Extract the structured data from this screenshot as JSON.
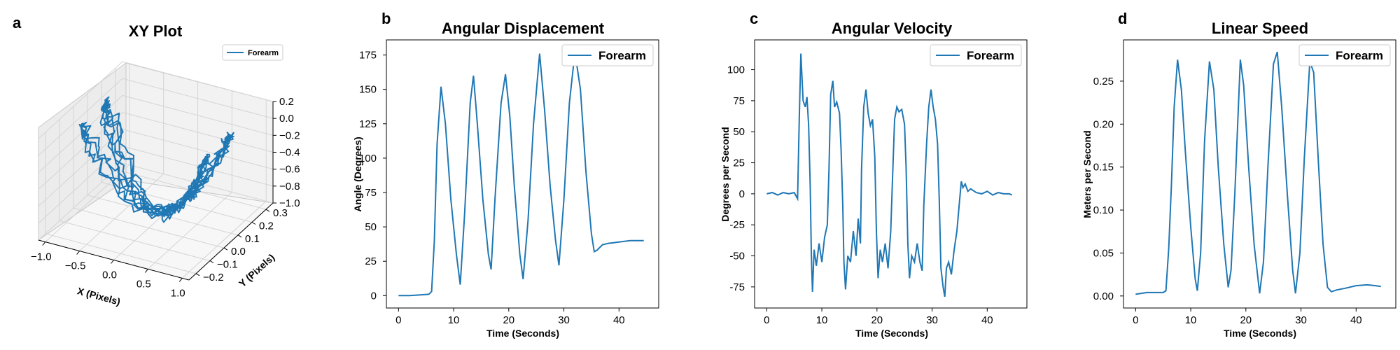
{
  "figure": {
    "line_color": "#1f77b4"
  },
  "chart_data": [
    {
      "panel": "a",
      "type": "line3d",
      "title": "XY Plot",
      "xlabel": "X (Pixels)",
      "ylabel": "Y (Pixels)",
      "zlabel": "",
      "legend": [
        "Forearm"
      ],
      "legend_position": "top-right",
      "x_ticks": [
        "−1.0",
        "−0.5",
        "0.0",
        "0.5",
        "1.0"
      ],
      "y_ticks": [
        "−0.2",
        "−0.1",
        "0.0",
        "0.1",
        "0.2",
        "0.3"
      ],
      "z_ticks": [
        "0.2",
        "0.0",
        "−0.2",
        "−0.4",
        "−0.6",
        "−0.8",
        "−1.0"
      ],
      "xlim": [
        -1.1,
        1.1
      ],
      "ylim": [
        -0.25,
        0.35
      ],
      "zlim": [
        -1.0,
        0.2
      ],
      "grid": true
    },
    {
      "panel": "b",
      "type": "line",
      "title": "Angular Displacement",
      "xlabel": "Time (Seconds)",
      "ylabel": "Angle (Degrees)",
      "legend": [
        "Forearm"
      ],
      "legend_position": "top-right",
      "xlim": [
        -2.2,
        47.2
      ],
      "ylim": [
        -9,
        186
      ],
      "x_ticks": [
        0,
        10,
        20,
        30,
        40
      ],
      "y_ticks": [
        0,
        25,
        50,
        75,
        100,
        125,
        150,
        175
      ],
      "series": [
        {
          "name": "Forearm",
          "points": [
            [
              0,
              0
            ],
            [
              2,
              0
            ],
            [
              4,
              0.5
            ],
            [
              5.5,
              1
            ],
            [
              6,
              3
            ],
            [
              6.5,
              40
            ],
            [
              7,
              110
            ],
            [
              7.7,
              152
            ],
            [
              8.5,
              125
            ],
            [
              9.5,
              70
            ],
            [
              10.5,
              30
            ],
            [
              11.2,
              8
            ],
            [
              12,
              60
            ],
            [
              13,
              140
            ],
            [
              13.6,
              160
            ],
            [
              14.3,
              125
            ],
            [
              15.3,
              70
            ],
            [
              16.3,
              30
            ],
            [
              16.8,
              19
            ],
            [
              17.5,
              70
            ],
            [
              18.6,
              140
            ],
            [
              19.4,
              161
            ],
            [
              20.2,
              130
            ],
            [
              21,
              80
            ],
            [
              22,
              30
            ],
            [
              22.6,
              12
            ],
            [
              23.5,
              55
            ],
            [
              24.5,
              125
            ],
            [
              25.6,
              176
            ],
            [
              26.5,
              135
            ],
            [
              27.5,
              80
            ],
            [
              28.5,
              40
            ],
            [
              29.1,
              22
            ],
            [
              30,
              70
            ],
            [
              31,
              140
            ],
            [
              32,
              177
            ],
            [
              33,
              150
            ],
            [
              34,
              90
            ],
            [
              35,
              45
            ],
            [
              35.5,
              32
            ],
            [
              36,
              33
            ],
            [
              37,
              37
            ],
            [
              38,
              38
            ],
            [
              40,
              39
            ],
            [
              42,
              40
            ],
            [
              44.5,
              40
            ]
          ]
        }
      ]
    },
    {
      "panel": "c",
      "type": "line",
      "title": "Angular Velocity",
      "xlabel": "Time (Seconds)",
      "ylabel": "Degrees per Second",
      "legend": [
        "Forearm"
      ],
      "legend_position": "top-right",
      "xlim": [
        -2.2,
        47.2
      ],
      "ylim": [
        -92,
        124
      ],
      "x_ticks": [
        0,
        10,
        20,
        30,
        40
      ],
      "y_ticks": [
        -75,
        -50,
        -25,
        0,
        25,
        50,
        75,
        100
      ],
      "series": [
        {
          "name": "Forearm",
          "points": [
            [
              0,
              0
            ],
            [
              1,
              1
            ],
            [
              2,
              -1
            ],
            [
              3,
              1
            ],
            [
              4,
              0
            ],
            [
              5,
              1
            ],
            [
              5.6,
              -4
            ],
            [
              5.9,
              60
            ],
            [
              6.2,
              113
            ],
            [
              6.6,
              75
            ],
            [
              7,
              70
            ],
            [
              7.3,
              78
            ],
            [
              7.6,
              55
            ],
            [
              7.9,
              5
            ],
            [
              8.1,
              -50
            ],
            [
              8.3,
              -79
            ],
            [
              8.6,
              -45
            ],
            [
              9,
              -58
            ],
            [
              9.5,
              -40
            ],
            [
              10,
              -55
            ],
            [
              10.5,
              -35
            ],
            [
              11,
              -25
            ],
            [
              11.3,
              20
            ],
            [
              11.6,
              80
            ],
            [
              12,
              91
            ],
            [
              12.3,
              70
            ],
            [
              12.7,
              74
            ],
            [
              13.2,
              65
            ],
            [
              13.5,
              35
            ],
            [
              13.8,
              -10
            ],
            [
              14,
              -55
            ],
            [
              14.3,
              -77
            ],
            [
              14.7,
              -50
            ],
            [
              15.2,
              -55
            ],
            [
              15.7,
              -30
            ],
            [
              16.2,
              -50
            ],
            [
              16.6,
              -20
            ],
            [
              17,
              -40
            ],
            [
              17.2,
              20
            ],
            [
              17.6,
              70
            ],
            [
              18,
              84
            ],
            [
              18.4,
              65
            ],
            [
              18.8,
              55
            ],
            [
              19.2,
              60
            ],
            [
              19.6,
              30
            ],
            [
              19.9,
              -30
            ],
            [
              20.2,
              -68
            ],
            [
              20.6,
              -45
            ],
            [
              21,
              -55
            ],
            [
              21.5,
              -40
            ],
            [
              22,
              -60
            ],
            [
              22.5,
              -30
            ],
            [
              22.8,
              10
            ],
            [
              23.2,
              60
            ],
            [
              23.6,
              70
            ],
            [
              24,
              66
            ],
            [
              24.5,
              68
            ],
            [
              25,
              56
            ],
            [
              25.3,
              20
            ],
            [
              25.6,
              -40
            ],
            [
              25.9,
              -68
            ],
            [
              26.3,
              -50
            ],
            [
              26.8,
              -55
            ],
            [
              27.3,
              -40
            ],
            [
              27.8,
              -55
            ],
            [
              28.2,
              -62
            ],
            [
              28.5,
              -10
            ],
            [
              29,
              40
            ],
            [
              29.4,
              70
            ],
            [
              29.8,
              84
            ],
            [
              30.2,
              70
            ],
            [
              30.6,
              60
            ],
            [
              31,
              40
            ],
            [
              31.3,
              -5
            ],
            [
              31.6,
              -60
            ],
            [
              32,
              -75
            ],
            [
              32.3,
              -83
            ],
            [
              32.6,
              -60
            ],
            [
              33,
              -55
            ],
            [
              33.5,
              -65
            ],
            [
              34,
              -45
            ],
            [
              34.5,
              -30
            ],
            [
              35,
              -5
            ],
            [
              35.3,
              10
            ],
            [
              35.6,
              5
            ],
            [
              36,
              8
            ],
            [
              36.5,
              2
            ],
            [
              37,
              4
            ],
            [
              38,
              1
            ],
            [
              39,
              0
            ],
            [
              40,
              2
            ],
            [
              41,
              -1
            ],
            [
              42,
              1
            ],
            [
              43,
              0
            ],
            [
              44,
              0
            ],
            [
              44.5,
              -1
            ]
          ]
        }
      ]
    },
    {
      "panel": "d",
      "type": "line",
      "title": "Linear Speed",
      "xlabel": "Time (Seconds)",
      "ylabel": "Meters per Second",
      "legend": [
        "Forearm"
      ],
      "legend_position": "top-right",
      "xlim": [
        -2.2,
        47.2
      ],
      "ylim": [
        -0.014,
        0.298
      ],
      "x_ticks": [
        0,
        10,
        20,
        30,
        40
      ],
      "y_ticks": [
        "0.00",
        "0.05",
        "0.10",
        "0.15",
        "0.20",
        "0.25"
      ],
      "series": [
        {
          "name": "Forearm",
          "points": [
            [
              0,
              0.002
            ],
            [
              1,
              0.003
            ],
            [
              2,
              0.004
            ],
            [
              3,
              0.004
            ],
            [
              4,
              0.004
            ],
            [
              5,
              0.004
            ],
            [
              5.5,
              0.006
            ],
            [
              6,
              0.055
            ],
            [
              6.5,
              0.13
            ],
            [
              7,
              0.22
            ],
            [
              7.6,
              0.275
            ],
            [
              8.3,
              0.24
            ],
            [
              9,
              0.17
            ],
            [
              10,
              0.08
            ],
            [
              10.8,
              0.02
            ],
            [
              11.2,
              0.006
            ],
            [
              11.8,
              0.05
            ],
            [
              12.5,
              0.18
            ],
            [
              13.4,
              0.273
            ],
            [
              14.2,
              0.24
            ],
            [
              15,
              0.15
            ],
            [
              16,
              0.06
            ],
            [
              16.8,
              0.01
            ],
            [
              17.3,
              0.03
            ],
            [
              18,
              0.12
            ],
            [
              19,
              0.275
            ],
            [
              19.6,
              0.245
            ],
            [
              20.5,
              0.15
            ],
            [
              21.5,
              0.06
            ],
            [
              22.5,
              0.003
            ],
            [
              23.2,
              0.04
            ],
            [
              24,
              0.15
            ],
            [
              25,
              0.27
            ],
            [
              25.7,
              0.284
            ],
            [
              26.5,
              0.22
            ],
            [
              27.5,
              0.12
            ],
            [
              28.5,
              0.03
            ],
            [
              29,
              0.003
            ],
            [
              29.8,
              0.05
            ],
            [
              30.6,
              0.16
            ],
            [
              31.6,
              0.273
            ],
            [
              32.3,
              0.26
            ],
            [
              33.2,
              0.15
            ],
            [
              34,
              0.06
            ],
            [
              34.8,
              0.01
            ],
            [
              35.5,
              0.005
            ],
            [
              36.5,
              0.007
            ],
            [
              38,
              0.009
            ],
            [
              40,
              0.012
            ],
            [
              42,
              0.013
            ],
            [
              43.5,
              0.012
            ],
            [
              44.5,
              0.011
            ]
          ]
        }
      ]
    }
  ]
}
